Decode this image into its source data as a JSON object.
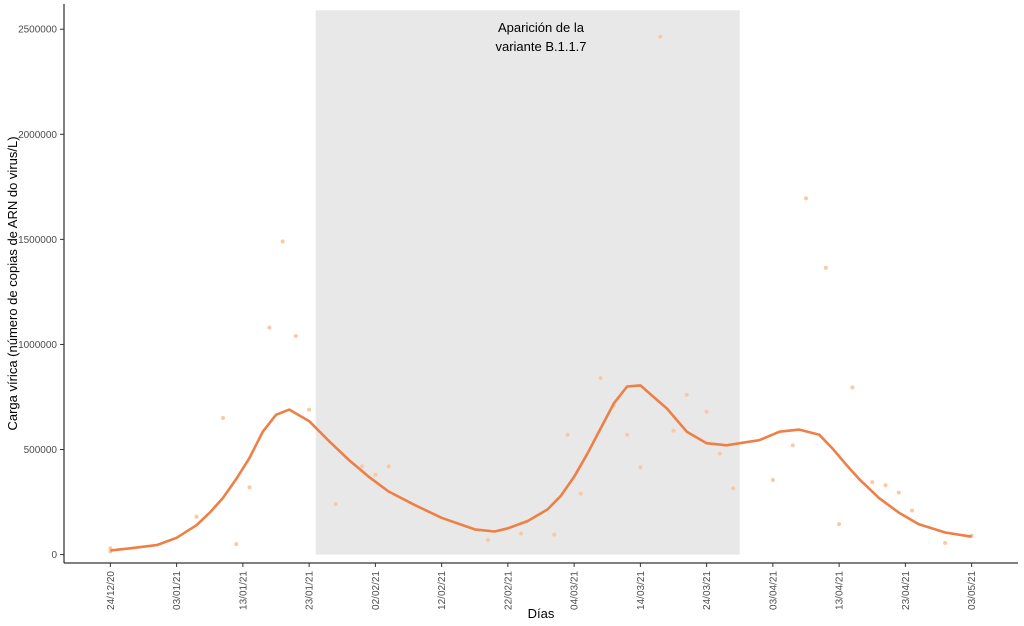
{
  "chart_data": {
    "type": "scatter",
    "xlabel": "Días",
    "ylabel": "Carga vírica (número de copias de ARN do virus/L)",
    "x_tick_labels": [
      "24/12/20",
      "03/01/21",
      "13/01/21",
      "23/01/21",
      "02/02/21",
      "12/02/21",
      "22/02/21",
      "04/03/21",
      "14/03/21",
      "24/03/21",
      "03/04/21",
      "13/04/21",
      "23/04/21",
      "03/05/21"
    ],
    "y_ticks": [
      0,
      500000,
      1000000,
      1500000,
      2000000,
      2500000
    ],
    "y_tick_labels": [
      "0",
      "500000",
      "1000000",
      "1500000",
      "2000000",
      "2500000"
    ],
    "xlim": [
      "2020-12-17",
      "2021-05-10"
    ],
    "ylim": [
      -40000,
      2620000
    ],
    "grid": false,
    "colors": {
      "points": "#f9c8a6",
      "smooth": "#ee7f45",
      "shade": "#e8e8e8"
    },
    "shaded_region": {
      "x_start": "2021-01-24",
      "x_end": "2021-03-29",
      "y_min": 0,
      "y_max": 2590000
    },
    "annotation": {
      "lines": [
        "Aparición de la",
        "variante B.1.1.7"
      ],
      "x": "2021-02-27",
      "y": 2500000
    },
    "series": [
      {
        "type": "scatter",
        "x": [
          "2020-12-24",
          "2020-12-24",
          "2021-01-06",
          "2021-01-10",
          "2021-01-12",
          "2021-01-14",
          "2021-01-17",
          "2021-01-19",
          "2021-01-21",
          "2021-01-23",
          "2021-01-27",
          "2021-01-31",
          "2021-02-02",
          "2021-02-04",
          "2021-02-19",
          "2021-02-24",
          "2021-03-01",
          "2021-03-03",
          "2021-03-05",
          "2021-03-08",
          "2021-03-10",
          "2021-03-12",
          "2021-03-14",
          "2021-03-17",
          "2021-03-19",
          "2021-03-21",
          "2021-03-24",
          "2021-03-26",
          "2021-03-28",
          "2021-04-03",
          "2021-04-06",
          "2021-04-08",
          "2021-04-11",
          "2021-04-13",
          "2021-04-15",
          "2021-04-18",
          "2021-04-20",
          "2021-04-22",
          "2021-04-24",
          "2021-04-29",
          "2021-05-03"
        ],
        "y": [
          30000,
          15000,
          180000,
          650000,
          50000,
          320000,
          1080000,
          1490000,
          1040000,
          690000,
          240000,
          420000,
          380000,
          420000,
          70000,
          100000,
          95000,
          570000,
          290000,
          840000,
          710000,
          570000,
          415000,
          2465000,
          590000,
          760000,
          680000,
          480000,
          315000,
          355000,
          520000,
          1695000,
          1365000,
          145000,
          795000,
          345000,
          330000,
          295000,
          210000,
          55000,
          90000
        ]
      },
      {
        "type": "line",
        "x": [
          "2020-12-24",
          "2020-12-27",
          "2020-12-31",
          "2021-01-03",
          "2021-01-06",
          "2021-01-08",
          "2021-01-10",
          "2021-01-12",
          "2021-01-14",
          "2021-01-16",
          "2021-01-18",
          "2021-01-20",
          "2021-01-23",
          "2021-01-26",
          "2021-01-29",
          "2021-02-01",
          "2021-02-04",
          "2021-02-08",
          "2021-02-12",
          "2021-02-17",
          "2021-02-20",
          "2021-02-22",
          "2021-02-25",
          "2021-02-28",
          "2021-03-02",
          "2021-03-04",
          "2021-03-06",
          "2021-03-08",
          "2021-03-10",
          "2021-03-12",
          "2021-03-14",
          "2021-03-16",
          "2021-03-18",
          "2021-03-21",
          "2021-03-24",
          "2021-03-27",
          "2021-03-29",
          "2021-04-01",
          "2021-04-04",
          "2021-04-07",
          "2021-04-10",
          "2021-04-12",
          "2021-04-14",
          "2021-04-16",
          "2021-04-19",
          "2021-04-22",
          "2021-04-25",
          "2021-04-29",
          "2021-05-03"
        ],
        "y": [
          20000,
          30000,
          45000,
          80000,
          140000,
          200000,
          270000,
          360000,
          460000,
          585000,
          665000,
          690000,
          635000,
          540000,
          450000,
          370000,
          300000,
          235000,
          175000,
          120000,
          110000,
          125000,
          160000,
          215000,
          280000,
          370000,
          480000,
          600000,
          720000,
          800000,
          805000,
          750000,
          695000,
          585000,
          530000,
          520000,
          530000,
          545000,
          585000,
          595000,
          570000,
          505000,
          430000,
          360000,
          270000,
          200000,
          145000,
          105000,
          85000
        ]
      }
    ]
  }
}
